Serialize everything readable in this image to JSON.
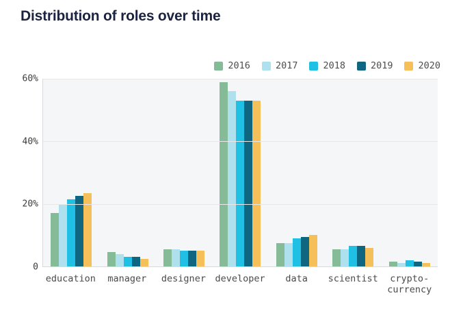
{
  "chart_data": {
    "type": "bar",
    "title": "Distribution of roles over time",
    "categories": [
      "education",
      "manager",
      "designer",
      "developer",
      "data",
      "scientist",
      "crypto-\ncurrency"
    ],
    "series": [
      {
        "name": "2016",
        "color": "#85bb96",
        "values": [
          17,
          4.5,
          5.5,
          59,
          7.5,
          5.5,
          1.5
        ]
      },
      {
        "name": "2017",
        "color": "#aee0ed",
        "values": [
          20,
          4,
          5.5,
          56,
          7.5,
          5.5,
          1
        ]
      },
      {
        "name": "2018",
        "color": "#1fc0e4",
        "values": [
          21.5,
          3,
          5,
          53,
          9,
          6.5,
          2
        ]
      },
      {
        "name": "2019",
        "color": "#0f6680",
        "values": [
          22.5,
          3,
          5,
          53,
          9.5,
          6.5,
          1.5
        ]
      },
      {
        "name": "2020",
        "color": "#f5c05a",
        "values": [
          23.5,
          2.5,
          5,
          53,
          10,
          6,
          1
        ]
      }
    ],
    "xlabel": "",
    "ylabel": "",
    "ylim": [
      0,
      60
    ],
    "yticks": [
      {
        "value": 0,
        "label": "0"
      },
      {
        "value": 20,
        "label": "20%"
      },
      {
        "value": 40,
        "label": "40%"
      },
      {
        "value": 60,
        "label": "60%"
      }
    ],
    "grid": true,
    "legend_position": "top-right",
    "colors": {
      "title": "#1b2340",
      "plot_background": "#f5f6f7",
      "gridline": "#e8e8ea",
      "axis_line": "#d9d9de",
      "tick_text": "#3c3c3c",
      "category_text": "#4a4a4a",
      "legend_text": "#4d4d4d"
    }
  }
}
